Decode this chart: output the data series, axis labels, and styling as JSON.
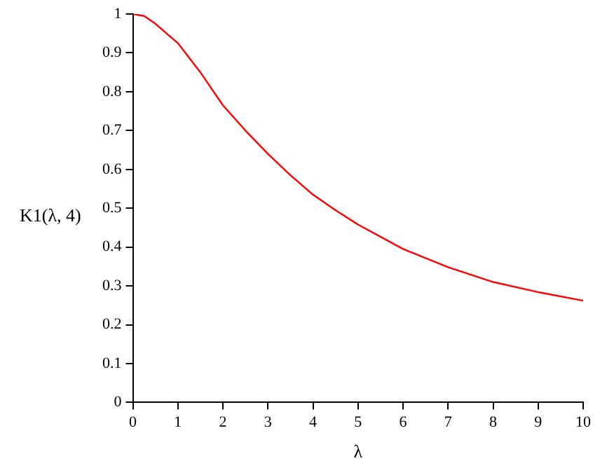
{
  "chart_data": {
    "type": "line",
    "xlabel": "λ",
    "ylabel": "K1(λ, 4)",
    "x": [
      0,
      0.25,
      0.5,
      1,
      1.5,
      2,
      2.5,
      3,
      3.5,
      4,
      4.5,
      5,
      6,
      7,
      8,
      9,
      10
    ],
    "series": [
      {
        "color": "#ff0000",
        "values": [
          1.0,
          0.995,
          0.975,
          0.925,
          0.85,
          0.765,
          0.7,
          0.64,
          0.585,
          0.535,
          0.495,
          0.458,
          0.395,
          0.348,
          0.31,
          0.284,
          0.262
        ]
      }
    ],
    "xlim": [
      0,
      10
    ],
    "xticks": [
      0,
      1,
      2,
      3,
      4,
      5,
      6,
      7,
      8,
      9,
      10
    ],
    "ylim": [
      0,
      1
    ],
    "yticks": [
      0,
      0.1,
      0.2,
      0.3,
      0.4,
      0.5,
      0.6,
      0.7,
      0.8,
      0.9,
      1
    ],
    "grid": false,
    "legend": false,
    "marker": "none",
    "line_style": "solid"
  }
}
